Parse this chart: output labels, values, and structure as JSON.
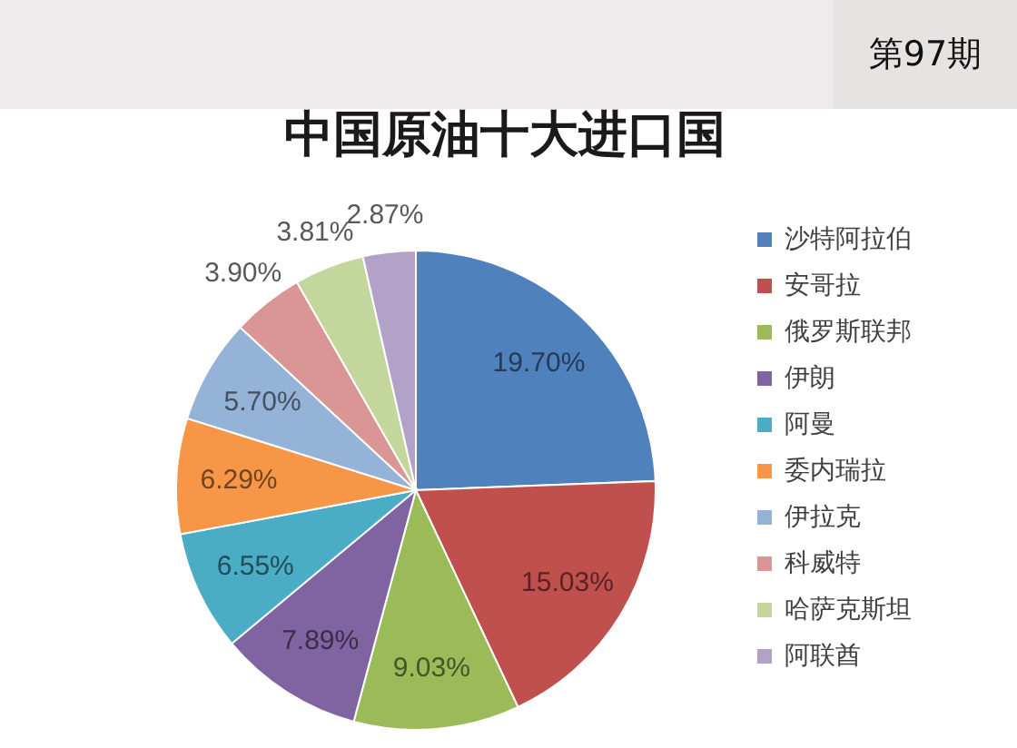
{
  "chart_data": {
    "type": "pie",
    "title": "中国原油十大进口国",
    "categories": [
      "沙特阿拉伯",
      "安哥拉",
      "俄罗斯联邦",
      "伊朗",
      "阿曼",
      "委内瑞拉",
      "伊拉克",
      "科威特",
      "哈萨克斯坦",
      "阿联酋"
    ],
    "values": [
      19.7,
      15.03,
      9.03,
      7.89,
      6.55,
      6.29,
      5.7,
      3.9,
      3.81,
      2.87
    ],
    "colors": [
      "#4f81bd",
      "#c0504d",
      "#9bbb59",
      "#8064a2",
      "#4bacc6",
      "#f79646",
      "#95b3d7",
      "#d99694",
      "#c3d69b",
      "#b3a2c7"
    ],
    "value_labels": [
      "19.70%",
      "15.03%",
      "9.03%",
      "7.89%",
      "6.55%",
      "6.29%",
      "5.70%",
      "3.90%",
      "3.81%",
      "2.87%"
    ],
    "legend": "right",
    "annotations": [
      "第97期"
    ]
  }
}
